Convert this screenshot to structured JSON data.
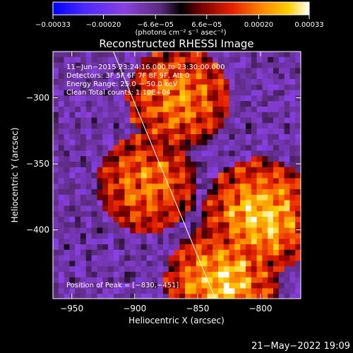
{
  "chart_data": {
    "type": "heatmap",
    "title": "Reconstructed RHESSI Image",
    "xlabel": "Heliocentric X (arcsec)",
    "ylabel": "Heliocentric Y (arcsec)",
    "xlim": [
      -965,
      -768
    ],
    "ylim": [
      -452,
      -265
    ],
    "x_ticks": [
      -950,
      -900,
      -850,
      -800
    ],
    "x_tick_labels": [
      "−950",
      "−900",
      "−850",
      "−800"
    ],
    "y_ticks": [
      -300,
      -350,
      -400
    ],
    "y_tick_labels": [
      "−300",
      "−350",
      "−400"
    ],
    "colorbar": {
      "range": [
        -0.00033,
        0.00033
      ],
      "ticks": [
        -0.00033,
        -0.0002,
        -6.6e-05,
        6.6e-05,
        0.0002,
        0.00033
      ],
      "tick_labels": [
        "−0.00033",
        "−0.00020",
        "−6.6e−05",
        "6.6e−05",
        "0.00020",
        "0.00033"
      ],
      "unit_label": "(photons cm⁻² s⁻¹ asec⁻²)",
      "colors": [
        "#0000ff",
        "#5a30ff",
        "#8a40e0",
        "#6a2a8a",
        "#000000",
        "#7a0000",
        "#e62000",
        "#ff8a00",
        "#ffd000",
        "#ffffff"
      ]
    },
    "annotations": [
      "11−Jun−2015 23:24:16.000 to 23:30:00.000",
      "Detectors: 3F 5F 6F 7F 8F 9F, Att 0",
      "Energy Range: 25.0 − 50.0 keV",
      "Clean     Total counts: 1.10E+04"
    ],
    "peak_label": "Position of Peak = [−830,−451]",
    "peak": [
      -830,
      -451
    ],
    "limb_line": [
      [
        -917,
        -265
      ],
      [
        -836,
        -452
      ]
    ],
    "hot_regions": [
      {
        "x": -865,
        "y": -300,
        "intensity": 0.75
      },
      {
        "x": -890,
        "y": -365,
        "intensity": 0.7
      },
      {
        "x": -800,
        "y": -390,
        "intensity": 1.0
      },
      {
        "x": -830,
        "y": -440,
        "intensity": 1.0
      }
    ],
    "grid": false
  },
  "footer": {
    "timestamp": "21−May−2022 19:09"
  }
}
